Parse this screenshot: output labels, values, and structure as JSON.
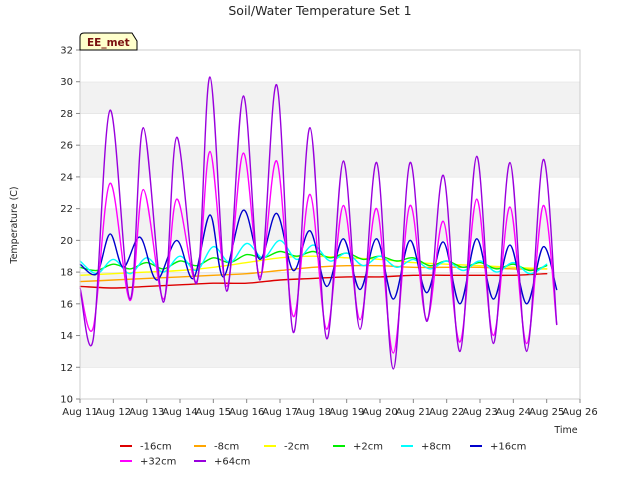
{
  "chart_data": {
    "type": "line",
    "title": "Soil/Water Temperature Set 1",
    "xlabel": "Time",
    "ylabel": "Temperature (C)",
    "badge": "EE_met",
    "xlim": [
      11,
      26
    ],
    "ylim": [
      10,
      32
    ],
    "x_ticks": [
      {
        "value": 11,
        "label": "Aug 11"
      },
      {
        "value": 12,
        "label": "Aug 12"
      },
      {
        "value": 13,
        "label": "Aug 13"
      },
      {
        "value": 14,
        "label": "Aug 14"
      },
      {
        "value": 15,
        "label": "Aug 15"
      },
      {
        "value": 16,
        "label": "Aug 16"
      },
      {
        "value": 17,
        "label": "Aug 17"
      },
      {
        "value": 18,
        "label": "Aug 18"
      },
      {
        "value": 19,
        "label": "Aug 19"
      },
      {
        "value": 20,
        "label": "Aug 20"
      },
      {
        "value": 21,
        "label": "Aug 21"
      },
      {
        "value": 22,
        "label": "Aug 22"
      },
      {
        "value": 23,
        "label": "Aug 23"
      },
      {
        "value": 24,
        "label": "Aug 24"
      },
      {
        "value": 25,
        "label": "Aug 25"
      },
      {
        "value": 26,
        "label": "Aug 26"
      }
    ],
    "y_ticks": [
      10,
      12,
      14,
      16,
      18,
      20,
      22,
      24,
      26,
      28,
      30,
      32
    ],
    "grid": "horizontal bands",
    "legend_placement": "bottom",
    "series": [
      {
        "name": "-16cm",
        "color": "#dd0000",
        "x": [
          11,
          12,
          13,
          14,
          15,
          16,
          17,
          18,
          19,
          20,
          21,
          22,
          23,
          24,
          25
        ],
        "y": [
          17.1,
          17.0,
          17.1,
          17.2,
          17.3,
          17.3,
          17.5,
          17.6,
          17.7,
          17.7,
          17.8,
          17.8,
          17.8,
          17.8,
          17.9
        ]
      },
      {
        "name": "-8cm",
        "color": "#ffa500",
        "x": [
          11,
          12,
          13,
          14,
          15,
          16,
          17,
          18,
          19,
          20,
          21,
          22,
          23,
          24,
          25
        ],
        "y": [
          17.4,
          17.5,
          17.6,
          17.7,
          17.8,
          17.9,
          18.1,
          18.3,
          18.4,
          18.4,
          18.3,
          18.3,
          18.3,
          18.2,
          18.2
        ]
      },
      {
        "name": "-2cm",
        "color": "#ffff00",
        "x": [
          11,
          12,
          13,
          14,
          15,
          16,
          17,
          18,
          19,
          20,
          21,
          22,
          23,
          24,
          25
        ],
        "y": [
          17.8,
          17.9,
          18.0,
          18.1,
          18.3,
          18.6,
          18.9,
          19.0,
          18.9,
          18.8,
          18.6,
          18.5,
          18.4,
          18.3,
          18.2
        ]
      },
      {
        "name": "+2cm",
        "color": "#00ee00",
        "x": [
          11,
          11.5,
          12,
          12.5,
          13,
          13.5,
          14,
          14.5,
          15,
          15.5,
          16,
          16.5,
          17,
          17.5,
          18,
          18.5,
          19,
          19.5,
          20,
          20.5,
          21,
          21.5,
          22,
          22.5,
          23,
          23.5,
          24,
          24.5,
          25
        ],
        "y": [
          18.3,
          18.1,
          18.5,
          18.2,
          18.6,
          18.2,
          18.7,
          18.4,
          18.9,
          18.6,
          19.1,
          18.9,
          19.3,
          19.0,
          19.3,
          18.9,
          19.2,
          18.8,
          19.0,
          18.7,
          18.9,
          18.4,
          18.7,
          18.3,
          18.6,
          18.2,
          18.5,
          18.1,
          18.4
        ]
      },
      {
        "name": "+8cm",
        "color": "#00ffff",
        "x": [
          11,
          11.5,
          12,
          12.5,
          13,
          13.5,
          14,
          14.5,
          15,
          15.5,
          16,
          16.5,
          17,
          17.5,
          18,
          18.5,
          19,
          19.5,
          20,
          20.5,
          21,
          21.5,
          22,
          22.5,
          23,
          23.5,
          24,
          24.5,
          25
        ],
        "y": [
          18.7,
          17.9,
          18.8,
          17.9,
          18.9,
          18.0,
          19.0,
          18.1,
          19.6,
          18.6,
          19.8,
          18.9,
          20.0,
          18.8,
          19.7,
          18.7,
          19.2,
          18.4,
          19.0,
          18.3,
          18.8,
          18.2,
          18.7,
          18.1,
          18.7,
          18.0,
          18.6,
          17.9,
          18.5
        ]
      },
      {
        "name": "+16cm",
        "color": "#0000cc",
        "x": [
          11,
          11.5,
          11.9,
          12.3,
          12.8,
          13.3,
          13.9,
          14.4,
          14.9,
          15.3,
          15.9,
          16.4,
          16.9,
          17.4,
          17.9,
          18.4,
          18.9,
          19.4,
          19.9,
          20.4,
          20.9,
          21.4,
          21.9,
          22.4,
          22.9,
          23.4,
          23.9,
          24.4,
          24.9,
          25.3
        ],
        "y": [
          18.5,
          17.9,
          20.4,
          18.3,
          20.2,
          17.5,
          20.0,
          17.6,
          21.6,
          17.7,
          21.9,
          18.8,
          21.7,
          18.1,
          20.6,
          17.1,
          20.1,
          16.9,
          20.1,
          16.3,
          20.0,
          16.7,
          19.9,
          16.0,
          20.1,
          16.3,
          19.7,
          16.0,
          19.6,
          16.9
        ]
      },
      {
        "name": "+32cm",
        "color": "#ff00ff",
        "x": [
          11,
          11.4,
          11.9,
          12.5,
          12.9,
          13.5,
          13.9,
          14.5,
          14.9,
          15.4,
          15.9,
          16.4,
          16.9,
          17.4,
          17.9,
          18.4,
          18.9,
          19.4,
          19.9,
          20.4,
          20.9,
          21.4,
          21.9,
          22.4,
          22.9,
          23.4,
          23.9,
          24.4,
          24.9,
          25.3
        ],
        "y": [
          17.0,
          14.5,
          23.6,
          16.2,
          23.2,
          16.3,
          22.6,
          17.4,
          25.6,
          17.1,
          25.5,
          17.7,
          25.0,
          15.2,
          22.9,
          14.4,
          22.2,
          15.0,
          22.0,
          12.9,
          22.2,
          15.0,
          21.2,
          13.6,
          22.6,
          14.0,
          22.1,
          13.5,
          22.2,
          14.7
        ]
      },
      {
        "name": "+64cm",
        "color": "#9900dd",
        "x": [
          11,
          11.4,
          11.9,
          12.5,
          12.9,
          13.5,
          13.9,
          14.5,
          14.9,
          15.4,
          15.9,
          16.4,
          16.9,
          17.4,
          17.9,
          18.4,
          18.9,
          19.4,
          19.9,
          20.4,
          20.9,
          21.4,
          21.9,
          22.4,
          22.9,
          23.4,
          23.9,
          24.4,
          24.9,
          25.3
        ],
        "y": [
          17.0,
          13.8,
          28.2,
          16.3,
          27.1,
          16.1,
          26.5,
          17.3,
          30.3,
          16.8,
          29.1,
          17.5,
          29.8,
          14.2,
          27.1,
          13.8,
          25.0,
          14.4,
          24.9,
          11.9,
          24.9,
          14.9,
          24.1,
          13.0,
          25.3,
          13.5,
          24.9,
          13.0,
          25.1,
          14.7
        ]
      }
    ]
  }
}
